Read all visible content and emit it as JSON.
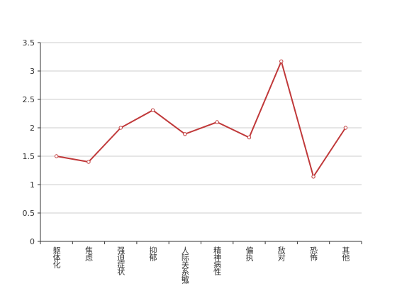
{
  "chart_data": {
    "type": "line",
    "categories": [
      "躯体化",
      "焦虑",
      "强迫症状",
      "抑郁",
      "人际关系敏感",
      "精神病性",
      "偏执",
      "敌对",
      "恐怖",
      "其他"
    ],
    "values": [
      1.5,
      1.4,
      2.0,
      2.31,
      1.89,
      2.1,
      1.83,
      3.17,
      1.14,
      2.0
    ],
    "color": "#c0393a",
    "ylim": [
      0,
      3.5
    ],
    "yticks": [
      0,
      0.5,
      1,
      1.5,
      2,
      2.5,
      3,
      3.5
    ],
    "grid": true
  }
}
